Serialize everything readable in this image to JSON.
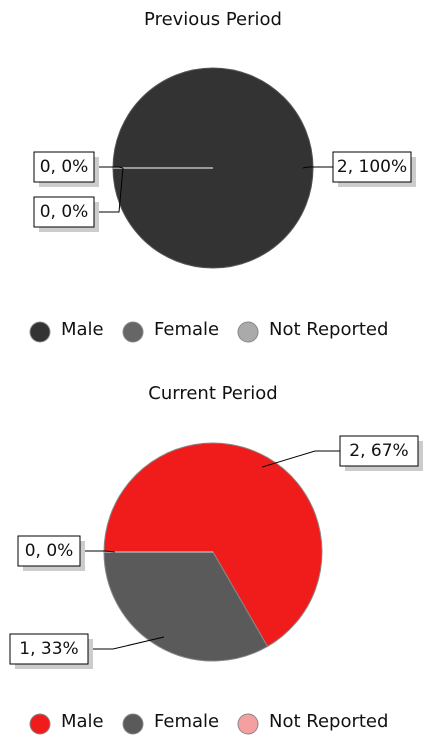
{
  "chart_data": [
    {
      "type": "pie",
      "title": "Previous Period",
      "categories": [
        "Male",
        "Female",
        "Not Reported"
      ],
      "values": [
        2,
        0,
        0
      ],
      "value_labels": [
        "2, 100%",
        "0, 0%",
        "0, 0%"
      ],
      "colors": [
        "#333333",
        "#666666",
        "#aaaaaa"
      ]
    },
    {
      "type": "pie",
      "title": "Current Period",
      "categories": [
        "Male",
        "Female",
        "Not Reported"
      ],
      "values": [
        2,
        1,
        0
      ],
      "value_labels": [
        "2, 67%",
        "1, 33%",
        "0, 0%"
      ],
      "colors": [
        "#f01c1c",
        "#5a5a5a",
        "#f4a0a0"
      ]
    }
  ]
}
